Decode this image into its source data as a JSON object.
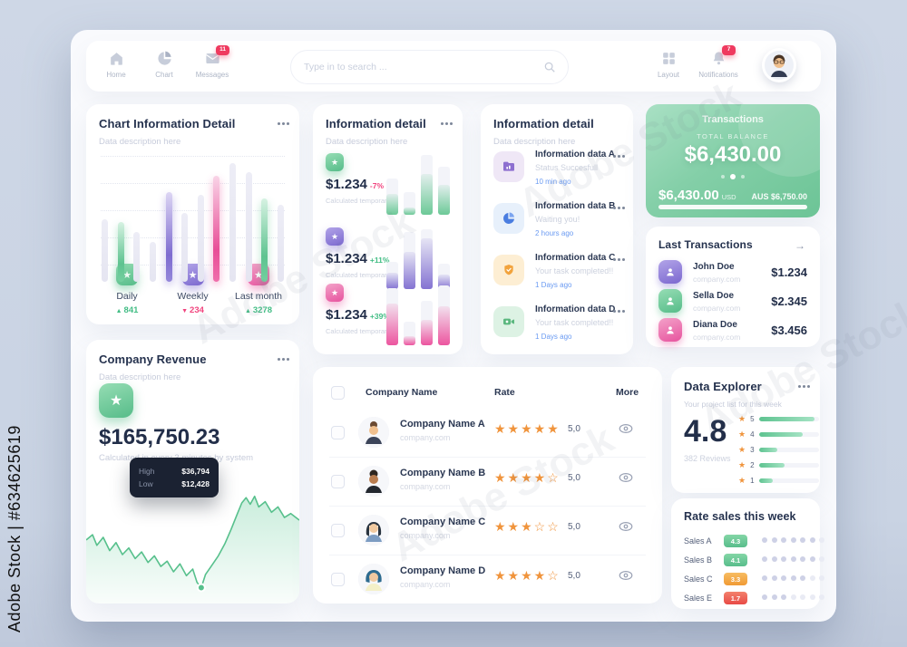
{
  "watermark": {
    "side": "Adobe Stock | #634625619",
    "diagonal": "Adobe Stock"
  },
  "colors": {
    "green": "#5fc390",
    "purple": "#8d7fd6",
    "pink": "#ec559f",
    "star_orange": "#f0943c",
    "badge_red": "#ef3a5f",
    "time_blue": "#6b9bf2"
  },
  "icons": {
    "star_filled": "★",
    "star_outline": "☆",
    "arrow_up": "▲",
    "arrow_down": "▼",
    "arrow_right": "→"
  },
  "nav": {
    "home_label": "Home",
    "chart_label": "Chart",
    "messages_label": "Messages",
    "messages_badge": "11",
    "search_placeholder": "Type in to search ...",
    "layout_label": "Layout",
    "notifications_label": "Notifications",
    "notifications_badge": "7"
  },
  "chart_card": {
    "title": "Chart Information Detail",
    "subtitle": "Data description here",
    "stats": [
      {
        "label": "Daily",
        "arrow": "▲",
        "value": "841",
        "trend": "up"
      },
      {
        "label": "Weekly",
        "arrow": "▼",
        "value": "234",
        "trend": "down"
      },
      {
        "label": "Last month",
        "arrow": "▲",
        "value": "3278",
        "trend": "up"
      }
    ]
  },
  "chart_data": [
    {
      "type": "bar",
      "title": "Chart Information Detail",
      "values": [
        47,
        45,
        38,
        30,
        68,
        52,
        66,
        80,
        90,
        83,
        63,
        58
      ],
      "colors": [
        "gray",
        "green",
        "gray",
        "gray",
        "purple",
        "gray",
        "gray",
        "pink",
        "gray",
        "gray",
        "green",
        "gray"
      ],
      "ylim": [
        0,
        100
      ],
      "grid": "dotted-horizontal",
      "gridlines": 5
    },
    {
      "type": "bar",
      "title": "Information detail mini charts",
      "series": [
        {
          "name": "green",
          "tracks": [
            60,
            38,
            100,
            80
          ],
          "fills": [
            35,
            12,
            68,
            50
          ]
        },
        {
          "name": "purple",
          "tracks": [
            45,
            95,
            100,
            42
          ],
          "fills": [
            28,
            62,
            85,
            25
          ]
        },
        {
          "name": "pink",
          "tracks": [
            95,
            40,
            75,
            100
          ],
          "fills": [
            70,
            15,
            42,
            65
          ]
        }
      ]
    },
    {
      "type": "area",
      "title": "Company Revenue",
      "points": [
        [
          0,
          52
        ],
        [
          3,
          48
        ],
        [
          5,
          56
        ],
        [
          8,
          50
        ],
        [
          11,
          60
        ],
        [
          14,
          54
        ],
        [
          17,
          63
        ],
        [
          20,
          58
        ],
        [
          23,
          66
        ],
        [
          26,
          61
        ],
        [
          29,
          69
        ],
        [
          32,
          64
        ],
        [
          35,
          72
        ],
        [
          38,
          68
        ],
        [
          41,
          76
        ],
        [
          44,
          70
        ],
        [
          47,
          79
        ],
        [
          50,
          74
        ],
        [
          52,
          84
        ],
        [
          54,
          88
        ],
        [
          56,
          78
        ],
        [
          59,
          71
        ],
        [
          62,
          64
        ],
        [
          65,
          55
        ],
        [
          68,
          44
        ],
        [
          71,
          32
        ],
        [
          73,
          24
        ],
        [
          75,
          20
        ],
        [
          77,
          25
        ],
        [
          79,
          19
        ],
        [
          81,
          27
        ],
        [
          84,
          23
        ],
        [
          87,
          31
        ],
        [
          90,
          27
        ],
        [
          93,
          35
        ],
        [
          96,
          32
        ],
        [
          100,
          37
        ]
      ],
      "marker": [
        54,
        88
      ],
      "high": 36794,
      "low": 12428
    }
  ],
  "info_card": {
    "title": "Information detail",
    "subtitle": "Data description here",
    "rows": [
      {
        "value": "$1.234",
        "delta": "-7%",
        "note": "Calculated temporary"
      },
      {
        "value": "$1.234",
        "delta": "+11%",
        "note": "Calculated temporary"
      },
      {
        "value": "$1.234",
        "delta": "+39%",
        "note": "Calculated temporary"
      }
    ]
  },
  "activity_card": {
    "title": "Information detail",
    "subtitle": "Data description here",
    "items": [
      {
        "title": "Information data A",
        "status": "Status Succesfull",
        "time": "10 min ago",
        "icon": "folder-icon"
      },
      {
        "title": "Information data B",
        "status": "Waiting you!",
        "time": "2 hours ago",
        "icon": "pie-chart-icon"
      },
      {
        "title": "Information data C",
        "status": "Your task completed!!",
        "time": "1 Days ago",
        "icon": "shield-check-icon"
      },
      {
        "title": "Information data D",
        "status": "Your task completed!!",
        "time": "1 Days ago",
        "icon": "video-camera-icon"
      }
    ]
  },
  "transactions_card": {
    "title": "Transactions",
    "balance_label": "TOTAL BALANCE",
    "balance": "$6,430.00",
    "amount": "$6,430.00",
    "currency": "USD",
    "converted": "AUS $6,750.00"
  },
  "last_transactions": {
    "title": "Last Transactions",
    "rows": [
      {
        "name": "John Doe",
        "company": "company.com",
        "amount": "$1.234"
      },
      {
        "name": "Sella Doe",
        "company": "company.com",
        "amount": "$2.345"
      },
      {
        "name": "Diana Doe",
        "company": "company.com",
        "amount": "$3.456"
      }
    ]
  },
  "revenue_card": {
    "title": "Company Revenue",
    "subtitle": "Data description here",
    "amount": "$165,750.23",
    "note": "Calculated in every 3 minutes by system",
    "tooltip": {
      "high_label": "High",
      "high_value": "$36,794",
      "low_label": "Low",
      "low_value": "$12,428"
    }
  },
  "table": {
    "headers": {
      "name": "Company Name",
      "rate": "Rate",
      "more": "More"
    },
    "rows": [
      {
        "name": "Company Name A",
        "company": "company.com",
        "stars_filled": 5,
        "rate": "5,0"
      },
      {
        "name": "Company Name B",
        "company": "company.com",
        "stars_filled": 4,
        "rate": "5,0"
      },
      {
        "name": "Company Name C",
        "company": "company.com",
        "stars_filled": 3,
        "rate": "5,0"
      },
      {
        "name": "Company Name D",
        "company": "company.com",
        "stars_filled": 4,
        "rate": "5,0"
      }
    ]
  },
  "explorer": {
    "title": "Data Explorer",
    "subtitle": "Your project list for this week",
    "score": "4.8",
    "reviews": "382 Reviews",
    "bars": [
      {
        "star": "5",
        "pct": 92
      },
      {
        "star": "4",
        "pct": 72
      },
      {
        "star": "3",
        "pct": 30
      },
      {
        "star": "2",
        "pct": 42
      },
      {
        "star": "1",
        "pct": 22
      }
    ]
  },
  "rate_sales": {
    "title": "Rate sales this week",
    "dots_total": 7,
    "rows": [
      {
        "label": "Sales A",
        "value": "4.3",
        "level": "green",
        "dots_filled": 6
      },
      {
        "label": "Sales B",
        "value": "4.1",
        "level": "green",
        "dots_filled": 6
      },
      {
        "label": "Sales C",
        "value": "3.3",
        "level": "orange",
        "dots_filled": 5
      },
      {
        "label": "Sales E",
        "value": "1.7",
        "level": "red",
        "dots_filled": 3
      }
    ]
  }
}
